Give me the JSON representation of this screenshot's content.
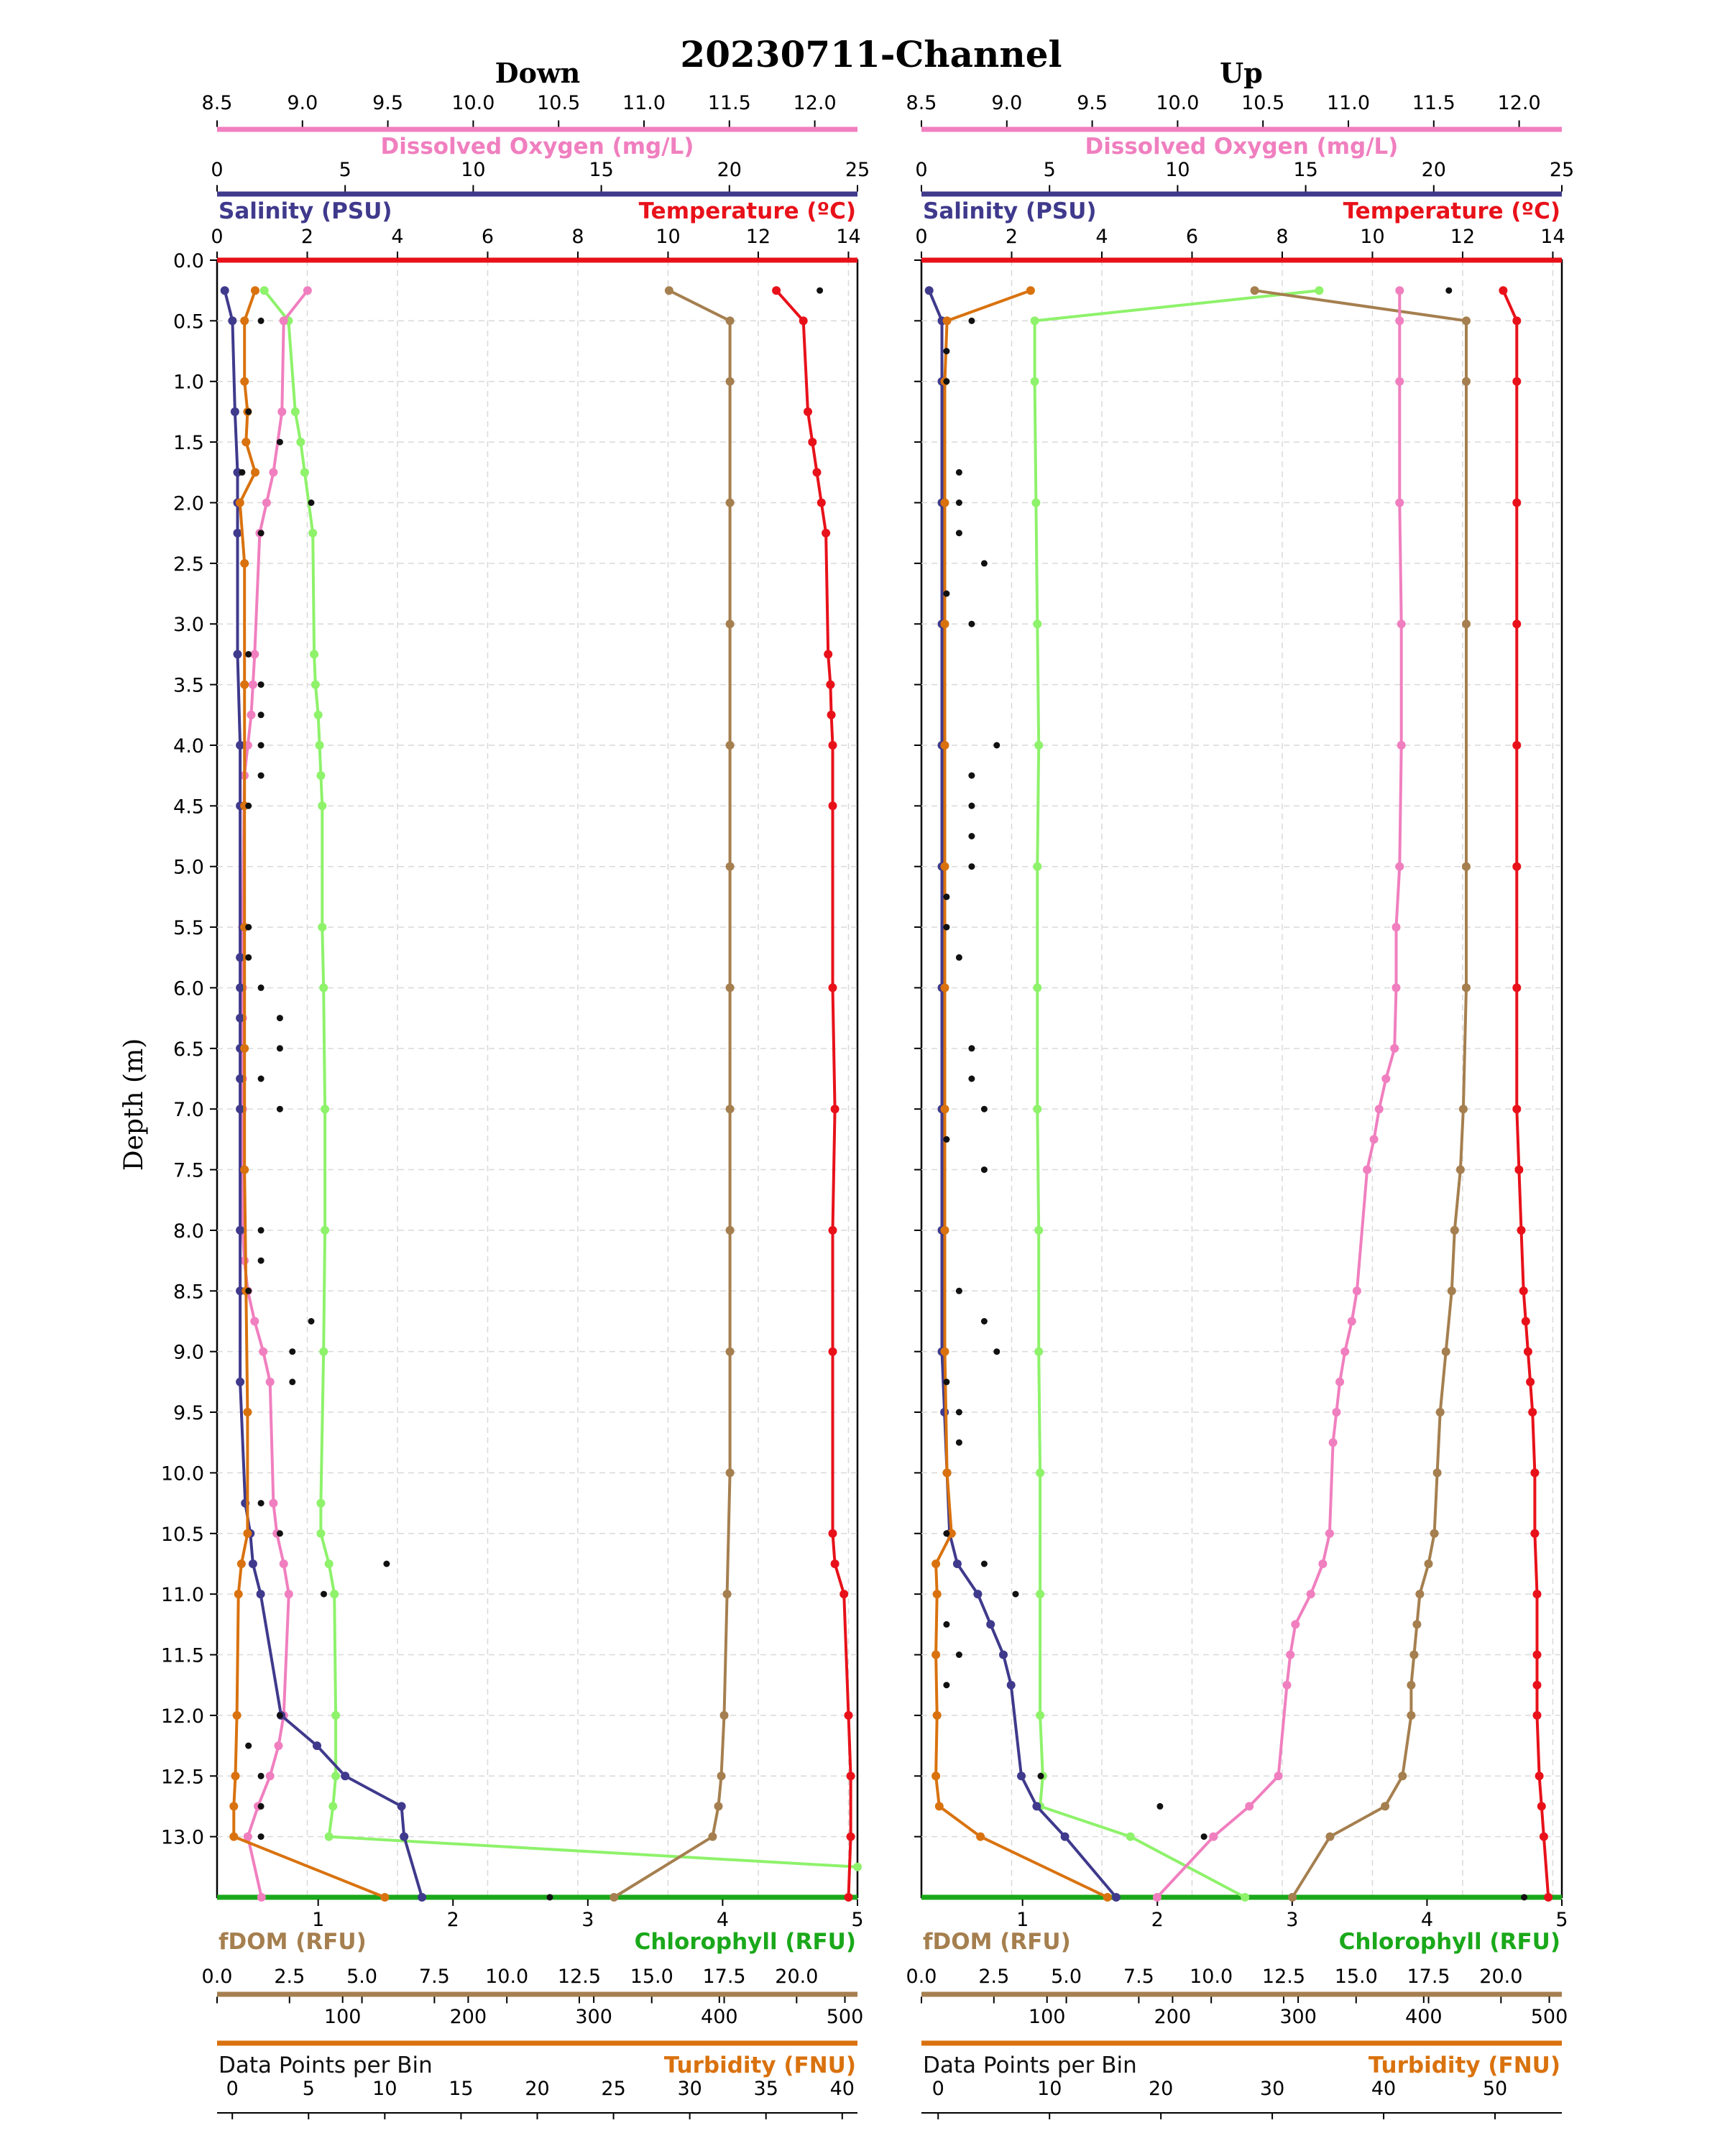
{
  "chart_data": {
    "type": "line",
    "title": "20230711-Channel",
    "ylabel": "Depth (m)",
    "ylim": [
      0.0,
      13.5
    ],
    "yticks": [
      "0.0",
      "0.5",
      "1.0",
      "1.5",
      "2.0",
      "2.5",
      "3.0",
      "3.5",
      "4.0",
      "4.5",
      "5.0",
      "5.5",
      "6.0",
      "6.5",
      "7.0",
      "7.5",
      "8.0",
      "8.5",
      "9.0",
      "9.5",
      "10.0",
      "10.5",
      "11.0",
      "11.5",
      "12.0",
      "12.5",
      "13.0"
    ],
    "grid": true,
    "colors": {
      "do": "#f07fbf",
      "salinity": "#3f3a8c",
      "temperature": "#e8111a",
      "fdom": "#a57f4f",
      "chlorophyll_line": "#8ef26b",
      "chlorophyll_axis": "#1aa81a",
      "turbidity": "#d9720e",
      "points": "#111111"
    },
    "axes": {
      "do": {
        "label": "Dissolved Oxygen (mg/L)",
        "lim": [
          8.5,
          12.25
        ],
        "ticks": [
          "8.5",
          "9.0",
          "9.5",
          "10.0",
          "10.5",
          "11.0",
          "11.5",
          "12.0"
        ]
      },
      "salinity": {
        "label": "Salinity (PSU)",
        "lim": [
          0,
          25
        ],
        "ticks": [
          "0",
          "5",
          "10",
          "15",
          "20",
          "25"
        ]
      },
      "temperature": {
        "label": "Temperature (ºC)",
        "lim": [
          0,
          14.2
        ],
        "ticks": [
          "0",
          "2",
          "4",
          "6",
          "8",
          "10",
          "12",
          "14"
        ]
      },
      "chlorophyll": {
        "label": "Chlorophyll (RFU)",
        "lim": [
          0.25,
          5.0
        ],
        "ticks": [
          "1",
          "2",
          "3",
          "4",
          "5"
        ]
      },
      "fdom": {
        "label": "fDOM (RFU)",
        "lim": [
          0,
          22.1
        ],
        "ticks": [
          "0.0",
          "2.5",
          "5.0",
          "7.5",
          "10.0",
          "12.5",
          "15.0",
          "17.5",
          "20.0"
        ]
      },
      "points": {
        "label": "Data Points per Bin",
        "lim": [
          0,
          510
        ],
        "ticks": [
          "100",
          "200",
          "300",
          "400",
          "500"
        ]
      },
      "turbidity_down": {
        "label": "Turbidity (FNU)",
        "lim": [
          -1,
          41
        ],
        "ticks": [
          "0",
          "5",
          "10",
          "15",
          "20",
          "25",
          "30",
          "35",
          "40"
        ]
      },
      "turbidity_up": {
        "label": "Turbidity (FNU)",
        "lim": [
          -1.5,
          56
        ],
        "ticks": [
          "0",
          "10",
          "20",
          "30",
          "40",
          "50"
        ]
      }
    },
    "panels": [
      {
        "name": "Down",
        "series": {
          "do": {
            "depth": [
              0.25,
              0.5,
              1.25,
              1.75,
              2.0,
              2.25,
              3.25,
              3.5,
              3.75,
              4.0,
              4.25,
              5.5,
              5.75,
              6.0,
              6.25,
              6.5,
              6.75,
              7.0,
              8.0,
              8.25,
              8.5,
              8.75,
              9.0,
              9.25,
              10.25,
              10.5,
              10.75,
              11.0,
              12.0,
              12.25,
              12.5,
              12.75,
              13.0,
              13.5
            ],
            "values": [
              9.03,
              8.89,
              8.88,
              8.83,
              8.79,
              8.75,
              8.72,
              8.71,
              8.7,
              8.68,
              8.66,
              8.65,
              8.65,
              8.65,
              8.65,
              8.65,
              8.65,
              8.65,
              8.65,
              8.66,
              8.68,
              8.72,
              8.77,
              8.81,
              8.83,
              8.85,
              8.89,
              8.92,
              8.89,
              8.86,
              8.81,
              8.74,
              8.68,
              8.76
            ]
          },
          "salinity": {
            "depth": [
              0.25,
              0.5,
              1.25,
              1.75,
              2.0,
              2.25,
              3.25,
              4.0,
              4.5,
              5.75,
              6.0,
              6.25,
              6.5,
              6.75,
              7.0,
              8.0,
              8.5,
              9.25,
              10.25,
              10.5,
              10.75,
              11.0,
              12.0,
              12.25,
              12.5,
              12.75,
              13.0,
              13.5
            ],
            "values": [
              0.3,
              0.6,
              0.7,
              0.8,
              0.8,
              0.8,
              0.8,
              0.9,
              0.9,
              0.9,
              0.9,
              0.9,
              0.9,
              0.9,
              0.9,
              0.9,
              0.9,
              0.9,
              1.1,
              1.3,
              1.4,
              1.7,
              2.5,
              3.9,
              5.0,
              7.2,
              7.3,
              8.0
            ]
          },
          "temperature": {
            "depth": [
              0.25,
              0.5,
              1.25,
              1.5,
              1.75,
              2.0,
              2.25,
              3.25,
              3.5,
              3.75,
              4.0,
              4.5,
              6.0,
              7.0,
              8.0,
              9.0,
              10.5,
              10.75,
              11.0,
              12.0,
              12.5,
              13.0,
              13.5
            ],
            "values": [
              12.4,
              13.0,
              13.1,
              13.2,
              13.3,
              13.4,
              13.5,
              13.55,
              13.6,
              13.62,
              13.65,
              13.65,
              13.65,
              13.7,
              13.65,
              13.65,
              13.65,
              13.7,
              13.9,
              14.0,
              14.05,
              14.05,
              14.0
            ]
          },
          "fdom": {
            "depth": [
              0.25,
              0.5,
              1.0,
              2.0,
              3.0,
              4.0,
              5.0,
              6.0,
              7.0,
              8.0,
              9.0,
              10.0,
              11.0,
              12.0,
              12.5,
              12.75,
              13.0,
              13.5
            ],
            "values": [
              15.6,
              17.7,
              17.7,
              17.7,
              17.7,
              17.7,
              17.7,
              17.7,
              17.7,
              17.7,
              17.7,
              17.7,
              17.6,
              17.5,
              17.4,
              17.3,
              17.1,
              13.7
            ]
          },
          "chlorophyll": {
            "depth": [
              0.25,
              0.5,
              1.25,
              1.5,
              1.75,
              2.25,
              3.25,
              3.5,
              3.75,
              4.0,
              4.25,
              4.5,
              5.5,
              6.0,
              7.0,
              8.0,
              9.0,
              10.25,
              10.5,
              10.75,
              11.0,
              12.0,
              12.5,
              12.75,
              13.0,
              13.25
            ],
            "values": [
              0.6,
              0.78,
              0.83,
              0.87,
              0.9,
              0.96,
              0.97,
              0.98,
              1.0,
              1.01,
              1.02,
              1.03,
              1.03,
              1.04,
              1.05,
              1.05,
              1.04,
              1.02,
              1.02,
              1.08,
              1.12,
              1.13,
              1.13,
              1.11,
              1.08,
              5.0
            ]
          },
          "turbidity": {
            "depth": [
              0.25,
              0.5,
              1.0,
              1.25,
              1.5,
              1.75,
              2.0,
              2.5,
              3.5,
              4.5,
              5.5,
              6.5,
              7.5,
              8.5,
              9.5,
              10.5,
              10.75,
              11.0,
              12.0,
              12.5,
              12.75,
              13.0,
              13.5
            ],
            "values": [
              1.5,
              0.8,
              0.8,
              1.0,
              0.9,
              1.5,
              0.5,
              0.8,
              0.8,
              0.8,
              0.8,
              0.8,
              0.8,
              0.9,
              1.0,
              1.0,
              0.6,
              0.4,
              0.3,
              0.2,
              0.1,
              0.1,
              10.0
            ]
          },
          "points": {
            "depth": [
              0.25,
              0.5,
              1.25,
              1.5,
              1.75,
              2.0,
              2.25,
              3.25,
              3.5,
              3.75,
              4.0,
              4.25,
              4.5,
              5.5,
              5.75,
              6.0,
              6.25,
              6.5,
              6.75,
              7.0,
              8.0,
              8.25,
              8.5,
              8.75,
              9.0,
              9.25,
              10.25,
              10.5,
              10.75,
              11.0,
              12.0,
              12.25,
              12.5,
              12.75,
              13.0,
              13.5
            ],
            "values": [
              480,
              35,
              25,
              50,
              20,
              75,
              35,
              25,
              35,
              35,
              35,
              35,
              25,
              25,
              25,
              35,
              50,
              50,
              35,
              50,
              35,
              35,
              25,
              75,
              60,
              60,
              35,
              50,
              135,
              85,
              50,
              25,
              35,
              35,
              35,
              265
            ]
          }
        }
      },
      {
        "name": "Up",
        "series": {
          "do": {
            "depth": [
              0.25,
              0.5,
              1.0,
              2.0,
              3.0,
              4.0,
              5.0,
              5.5,
              6.0,
              6.5,
              6.75,
              7.0,
              7.25,
              7.5,
              8.5,
              8.75,
              9.0,
              9.25,
              9.5,
              9.75,
              10.5,
              10.75,
              11.0,
              11.25,
              11.5,
              11.75,
              12.5,
              12.75,
              13.0,
              13.5
            ],
            "values": [
              11.3,
              11.3,
              11.3,
              11.3,
              11.31,
              11.31,
              11.3,
              11.28,
              11.28,
              11.27,
              11.22,
              11.18,
              11.15,
              11.11,
              11.05,
              11.02,
              10.98,
              10.95,
              10.93,
              10.91,
              10.89,
              10.85,
              10.78,
              10.69,
              10.66,
              10.64,
              10.59,
              10.42,
              10.21,
              9.88
            ]
          },
          "salinity": {
            "depth": [
              0.25,
              0.5,
              1.0,
              2.0,
              3.0,
              4.0,
              5.0,
              6.0,
              7.0,
              8.0,
              9.0,
              9.5,
              10.0,
              10.5,
              10.75,
              11.0,
              11.25,
              11.5,
              11.75,
              12.5,
              12.75,
              13.0,
              13.5
            ],
            "values": [
              0.3,
              0.8,
              0.8,
              0.8,
              0.8,
              0.8,
              0.8,
              0.8,
              0.8,
              0.8,
              0.8,
              0.9,
              1.0,
              1.1,
              1.4,
              2.2,
              2.7,
              3.2,
              3.5,
              3.9,
              4.5,
              5.6,
              7.6
            ]
          },
          "temperature": {
            "depth": [
              0.25,
              0.5,
              1.0,
              2.0,
              3.0,
              4.0,
              5.0,
              6.0,
              7.0,
              7.5,
              8.0,
              8.5,
              8.75,
              9.0,
              9.25,
              9.5,
              10.0,
              10.5,
              11.0,
              11.5,
              11.75,
              12.0,
              12.5,
              12.75,
              13.0,
              13.5
            ],
            "values": [
              12.9,
              13.2,
              13.2,
              13.2,
              13.2,
              13.2,
              13.2,
              13.2,
              13.2,
              13.25,
              13.3,
              13.35,
              13.4,
              13.45,
              13.5,
              13.55,
              13.6,
              13.6,
              13.65,
              13.65,
              13.65,
              13.65,
              13.7,
              13.75,
              13.8,
              13.9
            ]
          },
          "fdom": {
            "depth": [
              0.25,
              0.5,
              1.0,
              3.0,
              5.0,
              6.0,
              7.0,
              7.5,
              8.0,
              8.5,
              9.0,
              9.5,
              10.0,
              10.5,
              10.75,
              11.0,
              11.25,
              11.5,
              11.75,
              12.0,
              12.5,
              12.75,
              13.0,
              13.5
            ],
            "values": [
              11.5,
              18.8,
              18.8,
              18.8,
              18.8,
              18.8,
              18.7,
              18.6,
              18.4,
              18.3,
              18.1,
              17.9,
              17.8,
              17.7,
              17.5,
              17.2,
              17.1,
              17.0,
              16.9,
              16.9,
              16.6,
              16.0,
              14.1,
              12.8
            ]
          },
          "chlorophyll": {
            "depth": [
              0.25,
              0.5,
              1.0,
              2.0,
              3.0,
              4.0,
              5.0,
              6.0,
              7.0,
              8.0,
              9.0,
              10.0,
              11.0,
              12.0,
              12.5,
              12.75,
              13.0,
              13.5
            ],
            "values": [
              3.2,
              1.09,
              1.09,
              1.1,
              1.11,
              1.12,
              1.11,
              1.11,
              1.11,
              1.12,
              1.12,
              1.13,
              1.13,
              1.13,
              1.15,
              1.13,
              1.8,
              2.65
            ]
          },
          "turbidity": {
            "depth": [
              0.25,
              0.5,
              1.0,
              2.0,
              3.0,
              4.0,
              5.0,
              6.0,
              7.0,
              8.0,
              9.0,
              10.0,
              10.5,
              10.75,
              11.0,
              11.5,
              12.0,
              12.5,
              12.75,
              13.0,
              13.5
            ],
            "values": [
              8.3,
              0.8,
              0.6,
              0.6,
              0.6,
              0.6,
              0.6,
              0.6,
              0.6,
              0.6,
              0.6,
              0.8,
              1.2,
              -0.2,
              -0.1,
              -0.2,
              -0.1,
              -0.2,
              0.1,
              3.8,
              15.2
            ]
          },
          "points": {
            "depth": [
              0.25,
              0.5,
              0.75,
              1.0,
              1.75,
              2.0,
              2.25,
              2.5,
              2.75,
              3.0,
              4.0,
              4.25,
              4.5,
              4.75,
              5.0,
              5.25,
              5.5,
              5.75,
              6.5,
              6.75,
              7.0,
              7.25,
              7.5,
              8.5,
              8.75,
              9.0,
              9.25,
              9.5,
              9.75,
              10.5,
              10.75,
              11.0,
              11.25,
              11.5,
              11.75,
              12.5,
              12.75,
              13.0,
              13.5
            ],
            "values": [
              420,
              40,
              20,
              20,
              30,
              30,
              30,
              50,
              20,
              40,
              60,
              40,
              40,
              40,
              40,
              20,
              20,
              30,
              40,
              40,
              50,
              20,
              50,
              30,
              50,
              60,
              20,
              30,
              30,
              20,
              50,
              75,
              20,
              30,
              20,
              95,
              190,
              225,
              480
            ]
          }
        }
      }
    ]
  }
}
